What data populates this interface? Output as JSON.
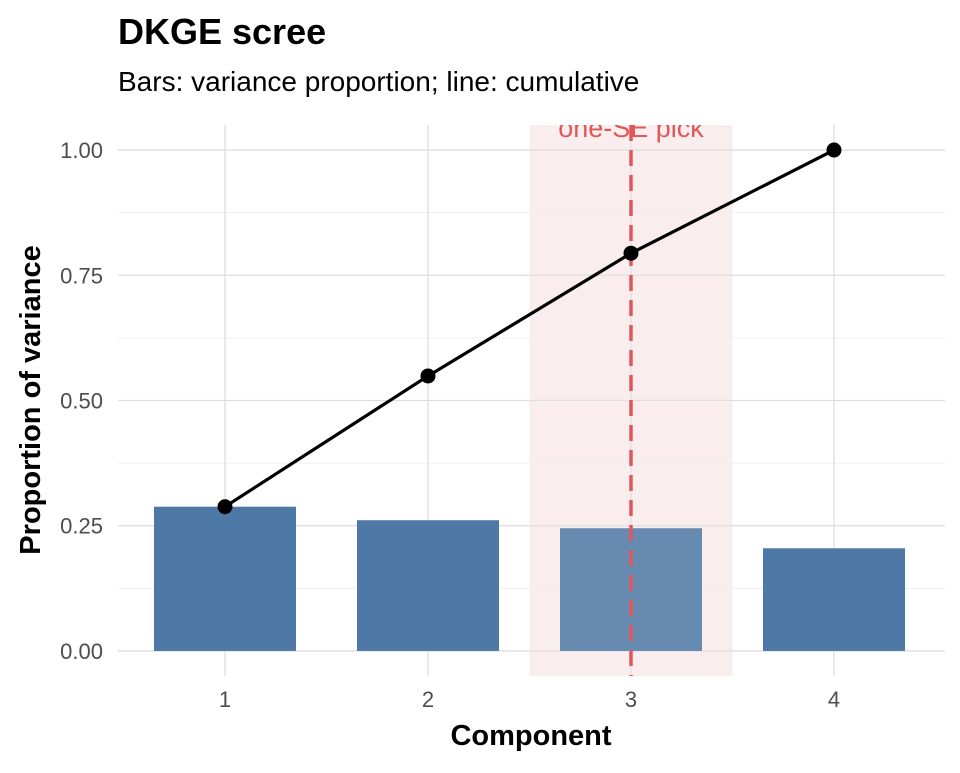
{
  "chart_data": {
    "type": "bar",
    "title": "DKGE scree",
    "subtitle": "Bars: variance proportion; line: cumulative",
    "xlabel": "Component",
    "ylabel": "Proportion of variance",
    "categories": [
      "1",
      "2",
      "3",
      "4"
    ],
    "series": [
      {
        "type": "bar",
        "values": [
          0.288,
          0.261,
          0.245,
          0.205
        ]
      },
      {
        "type": "line",
        "values": [
          0.288,
          0.549,
          0.794,
          1.0
        ]
      }
    ],
    "ylim": [
      -0.05,
      1.05
    ],
    "yticks": [
      0.0,
      0.25,
      0.5,
      0.75,
      1.0
    ],
    "ytick_labels": [
      "0.00",
      "0.25",
      "0.50",
      "0.75",
      "1.00"
    ],
    "grid": true,
    "legend": "none",
    "highlight": {
      "category": "3",
      "label": "one-SE pick",
      "line_style": "dashed",
      "color": "#e15759",
      "band_color": "#fbeeee"
    },
    "colors": {
      "bar": "#4e79a7",
      "line": "#000000",
      "grid": "#dddddd"
    }
  }
}
